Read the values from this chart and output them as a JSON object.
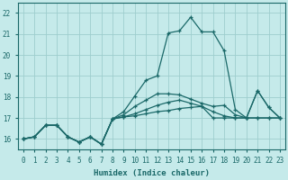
{
  "xlabel": "Humidex (Indice chaleur)",
  "background_color": "#c5eaea",
  "grid_color": "#9ecece",
  "line_color": "#1a6868",
  "xlim": [
    -0.5,
    23.5
  ],
  "ylim": [
    15.5,
    22.5
  ],
  "yticks": [
    16,
    17,
    18,
    19,
    20,
    21,
    22
  ],
  "xticks": [
    0,
    1,
    2,
    3,
    4,
    5,
    6,
    7,
    8,
    9,
    10,
    11,
    12,
    13,
    14,
    15,
    16,
    17,
    18,
    19,
    20,
    21,
    22,
    23
  ],
  "series": [
    [
      16.0,
      16.1,
      16.65,
      16.65,
      16.1,
      15.85,
      16.1,
      15.75,
      16.95,
      17.05,
      17.1,
      17.2,
      17.3,
      17.35,
      17.45,
      17.5,
      17.55,
      17.0,
      17.0,
      17.0,
      17.0,
      17.0,
      17.0,
      17.0
    ],
    [
      16.0,
      16.1,
      16.65,
      16.65,
      16.1,
      15.85,
      16.1,
      15.75,
      16.95,
      17.05,
      17.2,
      17.4,
      17.6,
      17.75,
      17.85,
      17.7,
      17.55,
      17.3,
      17.1,
      17.0,
      17.0,
      17.0,
      17.0,
      17.0
    ],
    [
      16.0,
      16.1,
      16.65,
      16.65,
      16.1,
      15.85,
      16.1,
      15.75,
      16.95,
      17.15,
      17.55,
      17.85,
      18.15,
      18.15,
      18.1,
      17.9,
      17.7,
      17.55,
      17.6,
      17.15,
      17.0,
      18.3,
      17.5,
      17.0
    ],
    [
      16.0,
      16.1,
      16.65,
      16.65,
      16.1,
      15.85,
      16.1,
      15.75,
      16.95,
      17.3,
      18.05,
      18.8,
      19.0,
      21.05,
      21.15,
      21.8,
      21.1,
      21.1,
      20.2,
      17.4,
      17.0,
      18.3,
      17.5,
      17.0
    ]
  ]
}
